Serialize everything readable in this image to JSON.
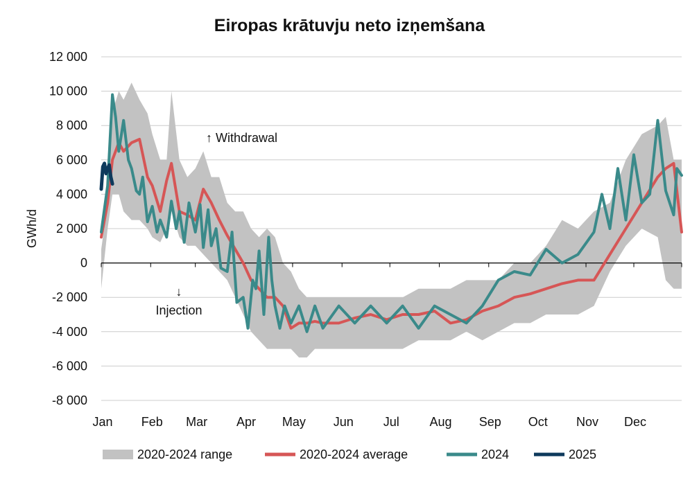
{
  "chart_data": {
    "type": "line",
    "title": "Eiropas krātuvju neto izņemšana",
    "ylabel": "GWh/d",
    "xlabel": "",
    "ylim": [
      -8000,
      12000
    ],
    "yticks": [
      12000,
      10000,
      8000,
      6000,
      4000,
      2000,
      0,
      -2000,
      -4000,
      -6000,
      -8000
    ],
    "ytick_labels": [
      "12 000",
      "10 000",
      "8 000",
      "6 000",
      "4 000",
      "2 000",
      "0",
      "-2 000",
      "-4 000",
      "-6 000",
      "-8 000"
    ],
    "x_unit": "day of year",
    "xlim": [
      1,
      365
    ],
    "month_labels": [
      "Jan",
      "Feb",
      "Mar",
      "Apr",
      "May",
      "Jun",
      "Jul",
      "Aug",
      "Sep",
      "Oct",
      "Nov",
      "Dec"
    ],
    "grid": "horizontal",
    "legend_position": "bottom",
    "annotations": [
      {
        "text": "Withdrawal",
        "arrow": "↑"
      },
      {
        "text": "Injection",
        "arrow": "↓"
      }
    ],
    "colors": {
      "range": "#c2c2c2",
      "average": "#d65656",
      "y2024": "#3a8a8a",
      "y2025": "#0e3a5c",
      "grid": "#cccccc",
      "zero_line": "#000000"
    },
    "range_band": {
      "name": "2020-2024 range",
      "x": [
        1,
        5,
        8,
        12,
        15,
        20,
        25,
        30,
        33,
        38,
        42,
        45,
        50,
        55,
        60,
        65,
        70,
        75,
        80,
        85,
        90,
        95,
        100,
        105,
        110,
        115,
        120,
        125,
        130,
        135,
        140,
        150,
        160,
        170,
        180,
        190,
        200,
        210,
        220,
        230,
        240,
        250,
        260,
        270,
        280,
        290,
        300,
        310,
        320,
        330,
        340,
        350,
        355,
        360,
        365
      ],
      "low": [
        -1500,
        2000,
        4000,
        4000,
        3000,
        2500,
        2500,
        2000,
        1500,
        1200,
        2000,
        3000,
        1500,
        1000,
        1000,
        500,
        0,
        -500,
        -1000,
        -2000,
        -3000,
        -4000,
        -4500,
        -5000,
        -5000,
        -5000,
        -5000,
        -5500,
        -5500,
        -5000,
        -5000,
        -5000,
        -5000,
        -5000,
        -5000,
        -5000,
        -4500,
        -4500,
        -4500,
        -4000,
        -4500,
        -4000,
        -3500,
        -3500,
        -3000,
        -3000,
        -3000,
        -2500,
        -500,
        1000,
        2000,
        1500,
        -1000,
        -1500,
        -1500
      ],
      "high": [
        800,
        3500,
        8800,
        10000,
        9500,
        10500,
        9500,
        8700,
        7500,
        6000,
        6000,
        10000,
        6000,
        5000,
        5500,
        6500,
        5000,
        5000,
        3500,
        3000,
        3000,
        2000,
        1500,
        2000,
        1500,
        0,
        -500,
        -1500,
        -2000,
        -2000,
        -2000,
        -2000,
        -2000,
        -2000,
        -2000,
        -2000,
        -1500,
        -1500,
        -1500,
        -1000,
        -1000,
        -1000,
        0,
        0,
        1000,
        2500,
        2000,
        3000,
        3500,
        6000,
        7500,
        8000,
        8500,
        6000,
        6000
      ]
    },
    "series": [
      {
        "name": "2020-2024 average",
        "x": [
          1,
          5,
          8,
          12,
          15,
          20,
          25,
          30,
          33,
          38,
          42,
          45,
          50,
          55,
          60,
          65,
          70,
          75,
          80,
          85,
          90,
          95,
          100,
          105,
          110,
          115,
          120,
          125,
          130,
          135,
          140,
          150,
          160,
          170,
          180,
          190,
          200,
          210,
          220,
          230,
          240,
          250,
          260,
          270,
          280,
          290,
          300,
          310,
          320,
          330,
          340,
          350,
          355,
          360,
          365
        ],
        "y": [
          1500,
          3500,
          6000,
          7000,
          6500,
          7000,
          7200,
          5000,
          4500,
          3000,
          4800,
          5800,
          3000,
          2800,
          2500,
          4300,
          3500,
          2500,
          1600,
          800,
          0,
          -1000,
          -1500,
          -2000,
          -2000,
          -2500,
          -3800,
          -3500,
          -3500,
          -3400,
          -3500,
          -3500,
          -3200,
          -3000,
          -3300,
          -3000,
          -3000,
          -2800,
          -3500,
          -3300,
          -2800,
          -2500,
          -2000,
          -1800,
          -1500,
          -1200,
          -1000,
          -1000,
          500,
          2000,
          3500,
          5000,
          5500,
          5800,
          1800
        ]
      },
      {
        "name": "2024",
        "x": [
          1,
          5,
          8,
          10,
          12,
          15,
          18,
          20,
          23,
          25,
          27,
          30,
          33,
          36,
          38,
          42,
          45,
          48,
          50,
          53,
          56,
          60,
          63,
          65,
          68,
          70,
          73,
          76,
          80,
          83,
          86,
          90,
          93,
          96,
          98,
          100,
          103,
          106,
          108,
          110,
          113,
          116,
          120,
          125,
          130,
          135,
          140,
          150,
          160,
          170,
          180,
          190,
          200,
          210,
          220,
          230,
          240,
          250,
          260,
          270,
          280,
          290,
          300,
          310,
          315,
          320,
          325,
          330,
          335,
          340,
          345,
          350,
          355,
          360,
          362,
          365
        ],
        "y": [
          1800,
          4500,
          9800,
          8500,
          6500,
          8300,
          6000,
          5500,
          4200,
          4000,
          5000,
          2400,
          3300,
          1800,
          2500,
          1500,
          3600,
          2000,
          3000,
          1200,
          3500,
          1800,
          3400,
          900,
          3100,
          1000,
          2000,
          -300,
          -500,
          1800,
          -2300,
          -2000,
          -3800,
          -1000,
          -1500,
          700,
          -3000,
          1500,
          -1000,
          -2500,
          -3800,
          -2500,
          -3500,
          -2500,
          -4000,
          -2500,
          -3800,
          -2500,
          -3500,
          -2500,
          -3500,
          -2500,
          -3800,
          -2500,
          -3000,
          -3500,
          -2500,
          -1000,
          -500,
          -700,
          800,
          0,
          500,
          1800,
          4000,
          2000,
          5500,
          2500,
          6300,
          3500,
          4000,
          8300,
          4200,
          2800,
          5500,
          5100
        ]
      },
      {
        "name": "2025",
        "x": [
          1,
          2,
          3,
          4,
          5,
          6,
          7,
          8
        ],
        "y": [
          4300,
          5600,
          5800,
          5200,
          5500,
          5700,
          5000,
          4600
        ]
      }
    ]
  },
  "legend": {
    "range_label": "2020-2024 range",
    "average_label": "2020-2024 average",
    "y2024_label": "2024",
    "y2025_label": "2025"
  },
  "annotations": {
    "withdrawal": "↑ Withdrawal",
    "injection_arrow": "↓",
    "injection": "Injection"
  }
}
